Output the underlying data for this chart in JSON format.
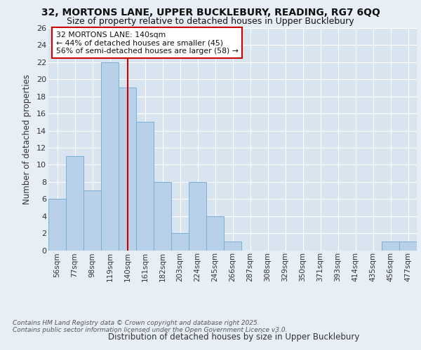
{
  "title_line1": "32, MORTONS LANE, UPPER BUCKLEBURY, READING, RG7 6QQ",
  "title_line2": "Size of property relative to detached houses in Upper Bucklebury",
  "xlabel": "Distribution of detached houses by size in Upper Bucklebury",
  "ylabel": "Number of detached properties",
  "bar_labels": [
    "56sqm",
    "77sqm",
    "98sqm",
    "119sqm",
    "140sqm",
    "161sqm",
    "182sqm",
    "203sqm",
    "224sqm",
    "245sqm",
    "266sqm",
    "287sqm",
    "308sqm",
    "329sqm",
    "350sqm",
    "371sqm",
    "393sqm",
    "414sqm",
    "435sqm",
    "456sqm",
    "477sqm"
  ],
  "bar_values": [
    6,
    11,
    7,
    22,
    19,
    15,
    8,
    2,
    8,
    4,
    1,
    0,
    0,
    0,
    0,
    0,
    0,
    0,
    0,
    1,
    1
  ],
  "bar_color": "#b8d0e8",
  "bar_edge_color": "#7aafd4",
  "vline_idx": 4,
  "vline_color": "#cc0000",
  "annotation_text": "32 MORTONS LANE: 140sqm\n← 44% of detached houses are smaller (45)\n56% of semi-detached houses are larger (58) →",
  "annotation_box_facecolor": "#ffffff",
  "annotation_box_edgecolor": "#cc0000",
  "background_color": "#e8eef5",
  "plot_bg_color": "#d8e4f0",
  "grid_color": "#ffffff",
  "ylim": [
    0,
    26
  ],
  "yticks": [
    0,
    2,
    4,
    6,
    8,
    10,
    12,
    14,
    16,
    18,
    20,
    22,
    24,
    26
  ],
  "footer_line1": "Contains HM Land Registry data © Crown copyright and database right 2025.",
  "footer_line2": "Contains public sector information licensed under the Open Government Licence v3.0."
}
